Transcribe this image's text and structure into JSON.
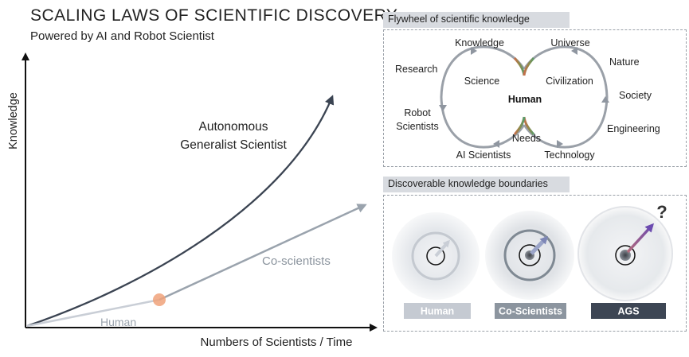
{
  "header": {
    "title": "SCALING LAWS OF SCIENTIFIC DISCOVERY",
    "subtitle": "Powered by AI and Robot Scientist"
  },
  "main_plot": {
    "y_axis_label": "Knowledge",
    "x_axis_label": "Numbers of Scientists / Time",
    "curves": {
      "ags_label_line1": "Autonomous",
      "ags_label_line2": "Generalist Scientist",
      "coscientists_label": "Co-scientists",
      "human_label": "Human"
    },
    "colors": {
      "ags": "#3b4452",
      "coscientists": "#9aa3ad",
      "human": "#c9ced6",
      "transition_dot": "#f0a27a"
    }
  },
  "flywheel": {
    "title": "Flywheel of scientific knowledge",
    "center": "Human",
    "left_inner": "Science",
    "right_inner": "Civilization",
    "left_outer": [
      "Knowledge",
      "Research",
      "Robot",
      "Scientists",
      "AI Scientists"
    ],
    "right_outer": [
      "Universe",
      "Nature",
      "Society",
      "Engineering",
      "Technology"
    ],
    "bottom_center": "Needs"
  },
  "boundaries": {
    "title": "Discoverable knowledge boundaries",
    "question_mark": "?",
    "items": [
      {
        "label": "Human",
        "color": "#c5cad2"
      },
      {
        "label": "Co-Scientists",
        "color": "#8c959f"
      },
      {
        "label": "AGS",
        "color": "#3d4654"
      }
    ]
  }
}
